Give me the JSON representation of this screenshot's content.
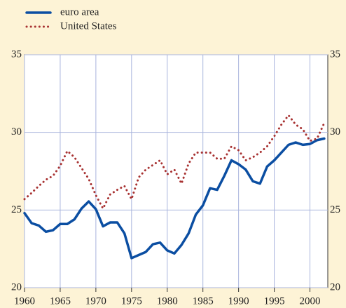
{
  "chart_data": {
    "type": "line",
    "x": [
      1960,
      1961,
      1962,
      1963,
      1964,
      1965,
      1966,
      1967,
      1968,
      1969,
      1970,
      1971,
      1972,
      1973,
      1974,
      1975,
      1976,
      1977,
      1978,
      1979,
      1980,
      1981,
      1982,
      1983,
      1984,
      1985,
      1986,
      1987,
      1988,
      1989,
      1990,
      1991,
      1992,
      1993,
      1994,
      1995,
      1996,
      1997,
      1998,
      1999,
      2000,
      2001,
      2002
    ],
    "series": [
      {
        "name": "euro area",
        "color": "#0b4ea2",
        "style": "solid",
        "values": [
          24.8,
          24.15,
          24.0,
          23.6,
          23.7,
          24.1,
          24.1,
          24.4,
          25.1,
          25.55,
          25.05,
          23.95,
          24.2,
          24.2,
          23.5,
          21.9,
          22.1,
          22.3,
          22.8,
          22.9,
          22.4,
          22.2,
          22.75,
          23.5,
          24.7,
          25.3,
          26.4,
          26.3,
          27.2,
          28.2,
          27.95,
          27.6,
          26.85,
          26.7,
          27.8,
          28.2,
          28.7,
          29.2,
          29.35,
          29.2,
          29.25,
          29.5,
          29.6
        ]
      },
      {
        "name": "United States",
        "color": "#a83232",
        "style": "dotted",
        "values": [
          25.7,
          26.1,
          26.55,
          26.95,
          27.2,
          27.85,
          28.8,
          28.4,
          27.7,
          27.0,
          25.95,
          25.1,
          26.0,
          26.3,
          26.55,
          25.7,
          27.1,
          27.6,
          27.9,
          28.2,
          27.3,
          27.6,
          26.7,
          28.0,
          28.7,
          28.7,
          28.7,
          28.3,
          28.3,
          29.1,
          28.85,
          28.2,
          28.4,
          28.7,
          29.1,
          29.75,
          30.5,
          31.1,
          30.5,
          30.2,
          29.45,
          29.6,
          30.6
        ]
      }
    ],
    "xlim": [
      1960,
      2002.5
    ],
    "xticks": [
      1960,
      1965,
      1970,
      1975,
      1980,
      1985,
      1990,
      1995,
      2000
    ],
    "ylim": [
      20,
      35
    ],
    "yticks": [
      20,
      25,
      30,
      35
    ],
    "grid": true,
    "legend": "top-left"
  }
}
